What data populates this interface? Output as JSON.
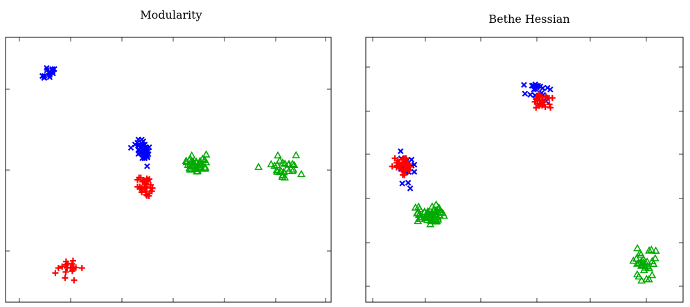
{
  "colors": {
    "red": "#ff0000",
    "blue": "#0000ff",
    "green": "#00aa00"
  },
  "chart_data": [
    {
      "type": "scatter",
      "title": "Modularity",
      "xlabel": "",
      "ylabel": "",
      "xlim": [
        0,
        1
      ],
      "ylim": [
        0,
        1
      ],
      "grid": false,
      "series": [
        {
          "marker": "x-mark",
          "color": "#0000ff",
          "clusters": [
            {
              "center": [
                0.13,
                0.865
              ],
              "spread": [
                0.025,
                0.03
              ],
              "count": 16,
              "seed": 11
            },
            {
              "center": [
                0.425,
                0.575
              ],
              "spread": [
                0.03,
                0.04
              ],
              "count": 40,
              "seed": 12
            }
          ]
        },
        {
          "marker": "plus",
          "color": "#ff0000",
          "clusters": [
            {
              "center": [
                0.43,
                0.435
              ],
              "spread": [
                0.03,
                0.04
              ],
              "count": 32,
              "seed": 21
            },
            {
              "center": [
                0.19,
                0.125
              ],
              "spread": [
                0.04,
                0.045
              ],
              "count": 18,
              "seed": 22
            }
          ]
        },
        {
          "marker": "triangle",
          "color": "#00aa00",
          "clusters": [
            {
              "center": [
                0.58,
                0.52
              ],
              "spread": [
                0.045,
                0.03
              ],
              "count": 38,
              "seed": 31
            },
            {
              "center": [
                0.86,
                0.51
              ],
              "spread": [
                0.06,
                0.045
              ],
              "count": 26,
              "seed": 32
            }
          ]
        }
      ]
    },
    {
      "type": "scatter",
      "title": "Bethe Hessian",
      "xlabel": "",
      "ylabel": "",
      "xlim": [
        0,
        1
      ],
      "ylim": [
        0,
        1
      ],
      "grid": false,
      "series": [
        {
          "marker": "x-mark",
          "color": "#0000ff",
          "clusters": [
            {
              "center": [
                0.54,
                0.8
              ],
              "spread": [
                0.05,
                0.035
              ],
              "count": 22,
              "seed": 41
            },
            {
              "center": [
                0.12,
                0.51
              ],
              "spread": [
                0.035,
                0.06
              ],
              "count": 22,
              "seed": 42
            }
          ]
        },
        {
          "marker": "plus",
          "color": "#ff0000",
          "clusters": [
            {
              "center": [
                0.555,
                0.76
              ],
              "spread": [
                0.035,
                0.035
              ],
              "count": 24,
              "seed": 51
            },
            {
              "center": [
                0.115,
                0.515
              ],
              "spread": [
                0.025,
                0.035
              ],
              "count": 40,
              "seed": 52
            }
          ]
        },
        {
          "marker": "triangle",
          "color": "#00aa00",
          "clusters": [
            {
              "center": [
                0.2,
                0.33
              ],
              "spread": [
                0.05,
                0.04
              ],
              "count": 55,
              "seed": 61
            },
            {
              "center": [
                0.88,
                0.15
              ],
              "spread": [
                0.03,
                0.06
              ],
              "count": 30,
              "seed": 62
            }
          ]
        }
      ]
    }
  ]
}
